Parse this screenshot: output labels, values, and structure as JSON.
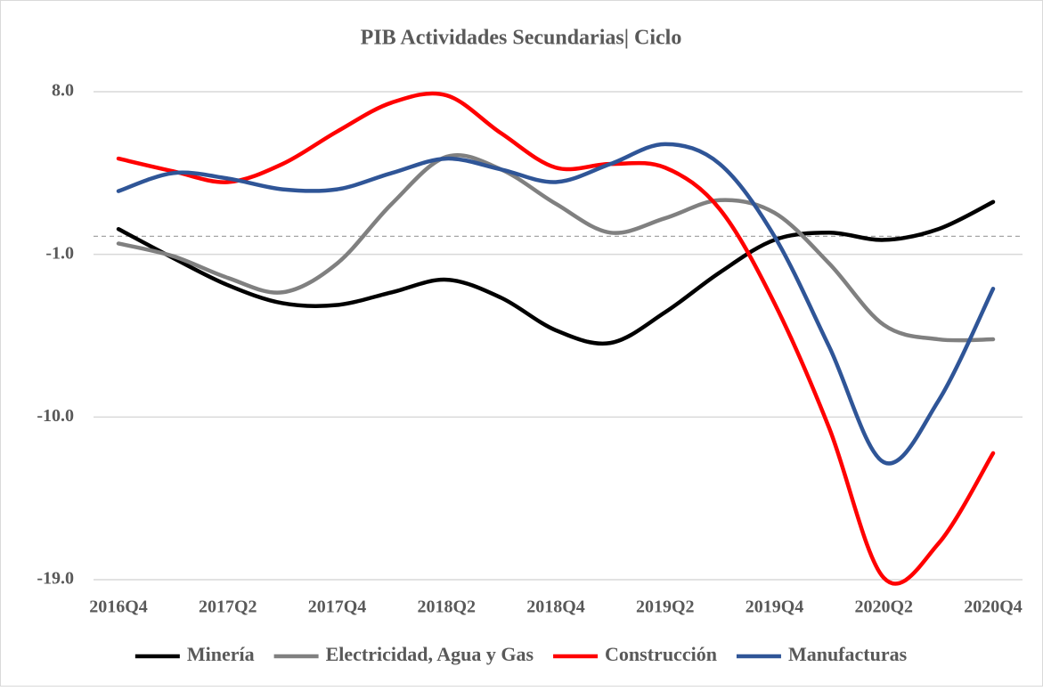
{
  "chart_data": {
    "type": "line",
    "title": "PIB Actividades Secundarias| Ciclo",
    "categories": [
      "2016Q4",
      null,
      "2017Q2",
      null,
      "2017Q4",
      null,
      "2018Q2",
      null,
      "2018Q4",
      null,
      "2019Q2",
      null,
      "2019Q4",
      null,
      "2020Q2",
      null,
      "2020Q4"
    ],
    "series": [
      {
        "name": "Minería",
        "color": "#000000",
        "values": [
          0.4,
          -1.2,
          -2.7,
          -3.7,
          -3.8,
          -3.1,
          -2.4,
          -3.4,
          -5.2,
          -5.9,
          -4.2,
          -2.0,
          -0.2,
          0.2,
          -0.2,
          0.4,
          1.9
        ]
      },
      {
        "name": "Electricidad, Agua y Gas",
        "color": "#808080",
        "values": [
          -0.4,
          -1.1,
          -2.3,
          -3.1,
          -1.5,
          1.8,
          4.4,
          3.7,
          1.8,
          0.2,
          1.0,
          2.0,
          1.3,
          -1.5,
          -4.9,
          -5.7,
          -5.7
        ]
      },
      {
        "name": "Construcción",
        "color": "#ff0000",
        "values": [
          4.3,
          3.6,
          3.0,
          4.0,
          5.8,
          7.4,
          7.8,
          5.7,
          3.8,
          4.0,
          3.8,
          1.5,
          -3.7,
          -10.6,
          -18.9,
          -17.0,
          -12.0
        ]
      },
      {
        "name": "Manufacturas",
        "color": "#2f5597",
        "values": [
          2.5,
          3.5,
          3.2,
          2.6,
          2.6,
          3.5,
          4.3,
          3.7,
          3.0,
          4.0,
          5.1,
          4.0,
          0.0,
          -6.1,
          -12.5,
          -9.1,
          -2.9
        ]
      }
    ],
    "ylim": [
      -19,
      8
    ],
    "yticks": [
      {
        "value": 8,
        "label": "8.0"
      },
      {
        "value": -1,
        "label": "-1.0"
      },
      {
        "value": -10,
        "label": "-10.0"
      },
      {
        "value": -19,
        "label": "-19.0"
      }
    ],
    "grid": true,
    "zero_line": true,
    "legend": "bottom"
  }
}
